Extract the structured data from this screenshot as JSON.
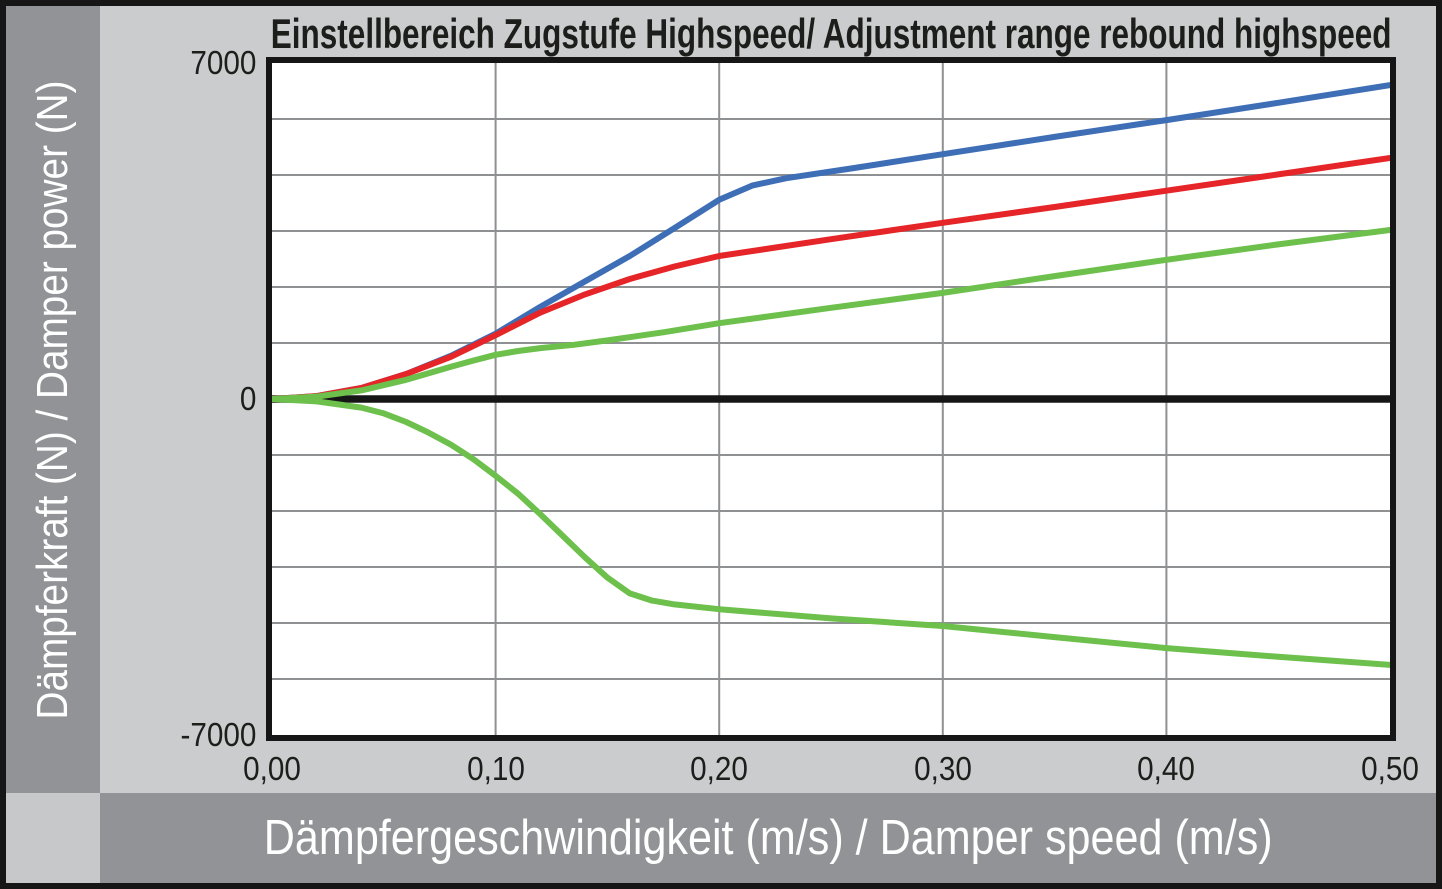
{
  "page": {
    "title": "Einstellbereich Zugstufe Highspeed/ Adjustment range rebound highspeed",
    "y_axis_label": "Dämpferkraft (N) / Damper power (N)",
    "x_axis_label": "Dämpfergeschwindigkeit (m/s) / Damper speed (m/s)"
  },
  "colors": {
    "outer_border": "#161616",
    "page_background": "#cbcccd",
    "panel_gray": "#919396",
    "corner_gray": "#c7c8ca",
    "plot_background": "#ffffff",
    "gridline": "#8e9092",
    "axis_black": "#161616",
    "series_blue": "#3e6eb5",
    "series_red": "#e52528",
    "series_green": "#6cc04b",
    "label_text": "#1d1d1b",
    "panel_text": "#ffffff"
  },
  "chart_data": {
    "type": "line",
    "title": "Einstellbereich Zugstufe Highspeed/ Adjustment range rebound highspeed",
    "xlabel": "Dämpfergeschwindigkeit (m/s) / Damper speed (m/s)",
    "ylabel": "Dämpferkraft (N) / Damper power (N)",
    "xlim": [
      0,
      0.5
    ],
    "ylim": [
      -7000,
      7000
    ],
    "grid": {
      "x_step": 0.1,
      "y_divisions": 12,
      "zero_line": true
    },
    "x_ticks": [
      {
        "value": 0.0,
        "label": "0,00"
      },
      {
        "value": 0.1,
        "label": "0,10"
      },
      {
        "value": 0.2,
        "label": "0,20"
      },
      {
        "value": 0.3,
        "label": "0,30"
      },
      {
        "value": 0.4,
        "label": "0,40"
      },
      {
        "value": 0.5,
        "label": "0,50"
      }
    ],
    "y_ticks": [
      {
        "value": 7000,
        "label": "7000"
      },
      {
        "value": 0,
        "label": "0"
      },
      {
        "value": -7000,
        "label": "-7000"
      }
    ],
    "legend": null,
    "series": [
      {
        "name": "rebound-highspeed-max-blue",
        "color": "#3e6eb5",
        "points": [
          [
            0,
            0
          ],
          [
            0.02,
            60
          ],
          [
            0.04,
            230
          ],
          [
            0.06,
            520
          ],
          [
            0.08,
            900
          ],
          [
            0.1,
            1360
          ],
          [
            0.12,
            1920
          ],
          [
            0.14,
            2450
          ],
          [
            0.16,
            2980
          ],
          [
            0.18,
            3560
          ],
          [
            0.2,
            4150
          ],
          [
            0.215,
            4450
          ],
          [
            0.23,
            4600
          ],
          [
            0.26,
            4810
          ],
          [
            0.3,
            5100
          ],
          [
            0.35,
            5460
          ],
          [
            0.4,
            5810
          ],
          [
            0.45,
            6170
          ],
          [
            0.5,
            6540
          ]
        ]
      },
      {
        "name": "rebound-highspeed-mid-red",
        "color": "#e52528",
        "points": [
          [
            0,
            0
          ],
          [
            0.02,
            60
          ],
          [
            0.04,
            230
          ],
          [
            0.06,
            520
          ],
          [
            0.08,
            880
          ],
          [
            0.1,
            1330
          ],
          [
            0.12,
            1800
          ],
          [
            0.14,
            2180
          ],
          [
            0.16,
            2500
          ],
          [
            0.18,
            2760
          ],
          [
            0.2,
            2980
          ],
          [
            0.25,
            3330
          ],
          [
            0.3,
            3670
          ],
          [
            0.35,
            4000
          ],
          [
            0.4,
            4340
          ],
          [
            0.45,
            4680
          ],
          [
            0.5,
            5020
          ]
        ]
      },
      {
        "name": "rebound-highspeed-min-green",
        "color": "#6cc04b",
        "points": [
          [
            0,
            0
          ],
          [
            0.02,
            50
          ],
          [
            0.04,
            180
          ],
          [
            0.06,
            400
          ],
          [
            0.08,
            670
          ],
          [
            0.09,
            800
          ],
          [
            0.1,
            920
          ],
          [
            0.11,
            1000
          ],
          [
            0.12,
            1060
          ],
          [
            0.135,
            1130
          ],
          [
            0.15,
            1220
          ],
          [
            0.175,
            1390
          ],
          [
            0.2,
            1580
          ],
          [
            0.25,
            1900
          ],
          [
            0.3,
            2210
          ],
          [
            0.35,
            2560
          ],
          [
            0.4,
            2900
          ],
          [
            0.45,
            3220
          ],
          [
            0.5,
            3520
          ]
        ]
      },
      {
        "name": "compression-green-lower",
        "color": "#6cc04b",
        "points": [
          [
            0,
            0
          ],
          [
            0.02,
            -50
          ],
          [
            0.04,
            -180
          ],
          [
            0.05,
            -300
          ],
          [
            0.06,
            -480
          ],
          [
            0.07,
            -700
          ],
          [
            0.08,
            -950
          ],
          [
            0.09,
            -1250
          ],
          [
            0.1,
            -1600
          ],
          [
            0.11,
            -1970
          ],
          [
            0.12,
            -2400
          ],
          [
            0.13,
            -2850
          ],
          [
            0.14,
            -3300
          ],
          [
            0.15,
            -3720
          ],
          [
            0.16,
            -4050
          ],
          [
            0.17,
            -4200
          ],
          [
            0.18,
            -4280
          ],
          [
            0.2,
            -4380
          ],
          [
            0.25,
            -4570
          ],
          [
            0.3,
            -4730
          ],
          [
            0.35,
            -4960
          ],
          [
            0.4,
            -5190
          ],
          [
            0.45,
            -5370
          ],
          [
            0.5,
            -5540
          ]
        ]
      }
    ]
  }
}
